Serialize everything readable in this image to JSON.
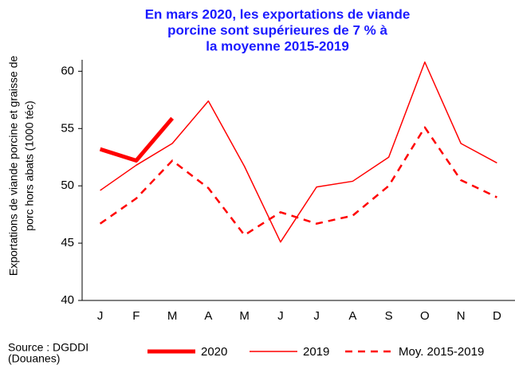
{
  "chart_data": {
    "type": "line",
    "title": [
      "En mars 2020, les exportations de viande",
      "porcine sont supérieures de 7 % à",
      "la moyenne 2015-2019"
    ],
    "y_label": [
      "Exportations de viande porcine et graisse de",
      "porc hors abats (1000 téc)"
    ],
    "source": [
      "Source : DGDDI",
      "(Douanes)"
    ],
    "categories": [
      "J",
      "F",
      "M",
      "A",
      "M",
      "J",
      "J",
      "A",
      "S",
      "O",
      "N",
      "D"
    ],
    "series": [
      {
        "name": "2020",
        "color": "#ff0000",
        "style": "thick",
        "values": [
          53.2,
          52.2,
          55.9,
          null,
          null,
          null,
          null,
          null,
          null,
          null,
          null,
          null
        ]
      },
      {
        "name": "2019",
        "color": "#ff0000",
        "style": "thin",
        "values": [
          49.6,
          51.8,
          53.7,
          57.4,
          51.7,
          45.1,
          49.9,
          50.4,
          52.5,
          60.8,
          53.7,
          52.0
        ]
      },
      {
        "name": "Moy. 2015-2019",
        "color": "#ff0000",
        "style": "dashed",
        "values": [
          46.7,
          48.9,
          52.2,
          49.8,
          45.7,
          47.7,
          46.7,
          47.4,
          50.0,
          55.1,
          50.5,
          49.0
        ]
      }
    ],
    "ylim": [
      40,
      61
    ],
    "yticks": [
      40,
      45,
      50,
      55,
      60
    ],
    "grid": false
  }
}
